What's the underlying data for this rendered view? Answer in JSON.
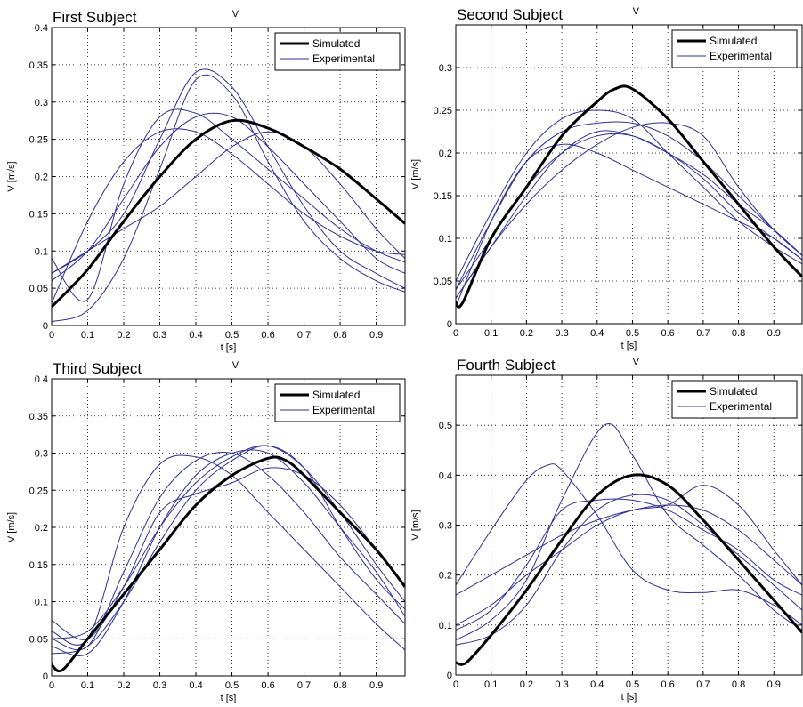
{
  "chart_data": [
    {
      "type": "line",
      "title": "First Subject",
      "caret": "V",
      "xlabel": "t [s]",
      "ylabel": "V [m/s]",
      "xlim": [
        0,
        0.98
      ],
      "ylim": [
        0,
        0.4
      ],
      "xticks": [
        "0",
        "0.1",
        "0.2",
        "0.3",
        "0.4",
        "0.5",
        "0.6",
        "0.7",
        "0.8",
        "0.9"
      ],
      "yticks": [
        "0",
        "0.05",
        "0.1",
        "0.15",
        "0.2",
        "0.25",
        "0.3",
        "0.35",
        "0.4"
      ],
      "grid": true,
      "legend": {
        "position": "top-right",
        "entries": [
          "Simulated",
          "Experimental"
        ]
      },
      "series": [
        {
          "name": "Simulated",
          "color": "#000000",
          "x": [
            0,
            0.1,
            0.2,
            0.3,
            0.4,
            0.5,
            0.6,
            0.7,
            0.8,
            0.9,
            0.98
          ],
          "y": [
            0.025,
            0.075,
            0.14,
            0.2,
            0.25,
            0.275,
            0.265,
            0.24,
            0.21,
            0.17,
            0.137
          ]
        },
        {
          "name": "Experimental",
          "color": "#2e3192",
          "x": [
            0,
            0.1,
            0.2,
            0.3,
            0.4,
            0.5,
            0.6,
            0.7,
            0.8,
            0.9,
            0.98
          ],
          "y": [
            0.005,
            0.02,
            0.09,
            0.21,
            0.33,
            0.31,
            0.22,
            0.14,
            0.09,
            0.06,
            0.045
          ]
        },
        {
          "name": "Experimental",
          "color": "#2e3192",
          "x": [
            0,
            0.1,
            0.2,
            0.3,
            0.4,
            0.5,
            0.6,
            0.7,
            0.8,
            0.9,
            0.98
          ],
          "y": [
            0.07,
            0.1,
            0.15,
            0.25,
            0.34,
            0.32,
            0.24,
            0.16,
            0.1,
            0.07,
            0.05
          ]
        },
        {
          "name": "Experimental",
          "color": "#2e3192",
          "x": [
            0,
            0.1,
            0.2,
            0.3,
            0.4,
            0.5,
            0.6,
            0.7,
            0.8,
            0.9,
            0.98
          ],
          "y": [
            0.09,
            0.035,
            0.19,
            0.28,
            0.285,
            0.25,
            0.21,
            0.17,
            0.13,
            0.1,
            0.085
          ]
        },
        {
          "name": "Experimental",
          "color": "#2e3192",
          "x": [
            0,
            0.1,
            0.2,
            0.3,
            0.4,
            0.5,
            0.6,
            0.7,
            0.8,
            0.9,
            0.98
          ],
          "y": [
            0.03,
            0.14,
            0.22,
            0.26,
            0.26,
            0.23,
            0.19,
            0.15,
            0.12,
            0.1,
            0.095
          ]
        },
        {
          "name": "Experimental",
          "color": "#2e3192",
          "x": [
            0,
            0.1,
            0.2,
            0.3,
            0.4,
            0.5,
            0.6,
            0.7,
            0.8,
            0.9,
            0.98
          ],
          "y": [
            0.06,
            0.1,
            0.17,
            0.24,
            0.28,
            0.28,
            0.24,
            0.19,
            0.14,
            0.09,
            0.07
          ]
        },
        {
          "name": "Experimental",
          "color": "#2e3192",
          "x": [
            0,
            0.1,
            0.2,
            0.3,
            0.4,
            0.5,
            0.6,
            0.7,
            0.8,
            0.9,
            0.98
          ],
          "y": [
            0.07,
            0.1,
            0.13,
            0.16,
            0.2,
            0.24,
            0.26,
            0.24,
            0.19,
            0.13,
            0.09
          ]
        }
      ]
    },
    {
      "type": "line",
      "title": "Second Subject",
      "caret": "V",
      "xlabel": "t [s]",
      "ylabel": "V [m/s]",
      "xlim": [
        0,
        0.98
      ],
      "ylim": [
        0,
        0.35
      ],
      "xticks": [
        "0",
        "0.1",
        "0.2",
        "0.3",
        "0.4",
        "0.5",
        "0.6",
        "0.7",
        "0.8",
        "0.9"
      ],
      "yticks": [
        "0",
        "0.05",
        "0.1",
        "0.15",
        "0.2",
        "0.25",
        "0.3"
      ],
      "grid": true,
      "legend": {
        "position": "top-right",
        "entries": [
          "Simulated",
          "Experimental"
        ]
      },
      "series": [
        {
          "name": "Simulated",
          "color": "#000000",
          "x": [
            0,
            0.02,
            0.1,
            0.2,
            0.3,
            0.4,
            0.45,
            0.5,
            0.6,
            0.7,
            0.8,
            0.9,
            0.98
          ],
          "y": [
            0.025,
            0.025,
            0.1,
            0.16,
            0.22,
            0.26,
            0.275,
            0.275,
            0.24,
            0.19,
            0.14,
            0.09,
            0.055
          ]
        },
        {
          "name": "Experimental",
          "color": "#2e3192",
          "x": [
            0,
            0.1,
            0.2,
            0.3,
            0.4,
            0.5,
            0.6,
            0.7,
            0.8,
            0.9,
            0.98
          ],
          "y": [
            0.02,
            0.12,
            0.19,
            0.21,
            0.2,
            0.18,
            0.16,
            0.14,
            0.12,
            0.1,
            0.075
          ]
        },
        {
          "name": "Experimental",
          "color": "#2e3192",
          "x": [
            0,
            0.1,
            0.2,
            0.3,
            0.4,
            0.5,
            0.6,
            0.7,
            0.8,
            0.9,
            0.98
          ],
          "y": [
            0.05,
            0.13,
            0.2,
            0.24,
            0.25,
            0.24,
            0.2,
            0.16,
            0.12,
            0.09,
            0.07
          ]
        },
        {
          "name": "Experimental",
          "color": "#2e3192",
          "x": [
            0,
            0.1,
            0.2,
            0.3,
            0.4,
            0.5,
            0.6,
            0.7,
            0.8,
            0.9,
            0.98
          ],
          "y": [
            0.04,
            0.1,
            0.16,
            0.2,
            0.22,
            0.22,
            0.2,
            0.17,
            0.13,
            0.1,
            0.075
          ]
        },
        {
          "name": "Experimental",
          "color": "#2e3192",
          "x": [
            0,
            0.1,
            0.2,
            0.3,
            0.4,
            0.5,
            0.6,
            0.7,
            0.8,
            0.9,
            0.98
          ],
          "y": [
            0.03,
            0.09,
            0.15,
            0.2,
            0.225,
            0.22,
            0.2,
            0.175,
            0.14,
            0.11,
            0.08
          ]
        },
        {
          "name": "Experimental",
          "color": "#2e3192",
          "x": [
            0,
            0.1,
            0.2,
            0.3,
            0.4,
            0.5,
            0.6,
            0.7,
            0.8,
            0.9,
            0.98
          ],
          "y": [
            0.03,
            0.09,
            0.14,
            0.18,
            0.21,
            0.23,
            0.235,
            0.22,
            0.16,
            0.11,
            0.08
          ]
        },
        {
          "name": "Experimental",
          "color": "#2e3192",
          "x": [
            0,
            0.1,
            0.2,
            0.3,
            0.4,
            0.5,
            0.6,
            0.7,
            0.8,
            0.9,
            0.98
          ],
          "y": [
            0.04,
            0.12,
            0.19,
            0.225,
            0.235,
            0.235,
            0.22,
            0.19,
            0.15,
            0.11,
            0.08
          ]
        }
      ]
    },
    {
      "type": "line",
      "title": "Third Subject",
      "caret": "V",
      "xlabel": "t [s]",
      "ylabel": "V [m/s]",
      "xlim": [
        0,
        0.98
      ],
      "ylim": [
        0,
        0.4
      ],
      "xticks": [
        "0",
        "0.1",
        "0.2",
        "0.3",
        "0.4",
        "0.5",
        "0.6",
        "0.7",
        "0.8",
        "0.9"
      ],
      "yticks": [
        "0",
        "0.05",
        "0.1",
        "0.15",
        "0.2",
        "0.25",
        "0.3",
        "0.35",
        "0.4"
      ],
      "grid": true,
      "legend": {
        "position": "top-right",
        "entries": [
          "Simulated",
          "Experimental"
        ]
      },
      "series": [
        {
          "name": "Simulated",
          "color": "#000000",
          "x": [
            0,
            0.03,
            0.1,
            0.2,
            0.3,
            0.4,
            0.5,
            0.6,
            0.65,
            0.7,
            0.8,
            0.9,
            0.98
          ],
          "y": [
            0.015,
            0.008,
            0.05,
            0.11,
            0.17,
            0.23,
            0.27,
            0.293,
            0.29,
            0.27,
            0.22,
            0.17,
            0.12
          ]
        },
        {
          "name": "Experimental",
          "color": "#2e3192",
          "x": [
            0,
            0.1,
            0.2,
            0.3,
            0.4,
            0.5,
            0.6,
            0.7,
            0.8,
            0.9,
            0.98
          ],
          "y": [
            0.06,
            0.05,
            0.2,
            0.285,
            0.295,
            0.27,
            0.22,
            0.17,
            0.12,
            0.07,
            0.035
          ]
        },
        {
          "name": "Experimental",
          "color": "#2e3192",
          "x": [
            0,
            0.1,
            0.2,
            0.3,
            0.4,
            0.5,
            0.6,
            0.7,
            0.8,
            0.9,
            0.98
          ],
          "y": [
            0.05,
            0.04,
            0.14,
            0.24,
            0.29,
            0.3,
            0.27,
            0.22,
            0.16,
            0.11,
            0.07
          ]
        },
        {
          "name": "Experimental",
          "color": "#2e3192",
          "x": [
            0,
            0.1,
            0.2,
            0.3,
            0.4,
            0.5,
            0.6,
            0.7,
            0.8,
            0.9,
            0.98
          ],
          "y": [
            0.04,
            0.03,
            0.1,
            0.2,
            0.27,
            0.3,
            0.3,
            0.26,
            0.2,
            0.14,
            0.08
          ]
        },
        {
          "name": "Experimental",
          "color": "#2e3192",
          "x": [
            0,
            0.1,
            0.2,
            0.3,
            0.4,
            0.5,
            0.6,
            0.7,
            0.8,
            0.9,
            0.98
          ],
          "y": [
            0.05,
            0.06,
            0.12,
            0.2,
            0.26,
            0.295,
            0.31,
            0.28,
            0.22,
            0.15,
            0.1
          ]
        },
        {
          "name": "Experimental",
          "color": "#2e3192",
          "x": [
            0,
            0.1,
            0.2,
            0.3,
            0.4,
            0.5,
            0.6,
            0.7,
            0.8,
            0.9,
            0.98
          ],
          "y": [
            0.075,
            0.05,
            0.12,
            0.22,
            0.245,
            0.26,
            0.28,
            0.27,
            0.23,
            0.17,
            0.12
          ]
        },
        {
          "name": "Experimental",
          "color": "#2e3192",
          "x": [
            0,
            0.1,
            0.2,
            0.3,
            0.4,
            0.5,
            0.6,
            0.7,
            0.8,
            0.9,
            0.98
          ],
          "y": [
            0.03,
            0.04,
            0.1,
            0.18,
            0.25,
            0.29,
            0.31,
            0.28,
            0.2,
            0.13,
            0.09
          ]
        }
      ]
    },
    {
      "type": "line",
      "title": "Fourth Subject",
      "caret": "V",
      "xlabel": "t [s]",
      "ylabel": "V [m/s]",
      "xlim": [
        0,
        0.98
      ],
      "ylim": [
        0,
        0.6
      ],
      "xticks": [
        "0",
        "0.1",
        "0.2",
        "0.3",
        "0.4",
        "0.5",
        "0.6",
        "0.7",
        "0.8",
        "0.9"
      ],
      "yticks": [
        "0",
        "0.1",
        "0.2",
        "0.3",
        "0.4",
        "0.5"
      ],
      "grid": true,
      "legend": {
        "position": "top-right",
        "entries": [
          "Simulated",
          "Experimental"
        ]
      },
      "series": [
        {
          "name": "Simulated",
          "color": "#000000",
          "x": [
            0,
            0.03,
            0.1,
            0.2,
            0.3,
            0.4,
            0.5,
            0.6,
            0.7,
            0.8,
            0.9,
            0.98
          ],
          "y": [
            0.025,
            0.025,
            0.08,
            0.17,
            0.27,
            0.36,
            0.4,
            0.38,
            0.31,
            0.23,
            0.15,
            0.085
          ]
        },
        {
          "name": "Experimental",
          "color": "#2e3192",
          "x": [
            0,
            0.1,
            0.2,
            0.26,
            0.3,
            0.4,
            0.5,
            0.6,
            0.7,
            0.8,
            0.9,
            0.98
          ],
          "y": [
            0.18,
            0.29,
            0.39,
            0.42,
            0.41,
            0.32,
            0.21,
            0.17,
            0.165,
            0.17,
            0.14,
            0.1
          ]
        },
        {
          "name": "Experimental",
          "color": "#2e3192",
          "x": [
            0,
            0.1,
            0.2,
            0.3,
            0.42,
            0.5,
            0.6,
            0.7,
            0.8,
            0.9,
            0.98
          ],
          "y": [
            0.07,
            0.11,
            0.19,
            0.35,
            0.5,
            0.44,
            0.32,
            0.26,
            0.2,
            0.13,
            0.09
          ]
        },
        {
          "name": "Experimental",
          "color": "#2e3192",
          "x": [
            0,
            0.1,
            0.2,
            0.3,
            0.4,
            0.5,
            0.6,
            0.7,
            0.8,
            0.9,
            0.98
          ],
          "y": [
            0.16,
            0.2,
            0.24,
            0.28,
            0.31,
            0.33,
            0.34,
            0.33,
            0.29,
            0.23,
            0.18
          ]
        },
        {
          "name": "Experimental",
          "color": "#2e3192",
          "x": [
            0,
            0.1,
            0.2,
            0.3,
            0.4,
            0.5,
            0.6,
            0.7,
            0.8,
            0.9,
            0.98
          ],
          "y": [
            0.1,
            0.14,
            0.2,
            0.25,
            0.3,
            0.33,
            0.34,
            0.38,
            0.34,
            0.25,
            0.18
          ]
        },
        {
          "name": "Experimental",
          "color": "#2e3192",
          "x": [
            0,
            0.1,
            0.2,
            0.3,
            0.4,
            0.5,
            0.6,
            0.7,
            0.8,
            0.9,
            0.98
          ],
          "y": [
            0.09,
            0.13,
            0.22,
            0.33,
            0.35,
            0.35,
            0.33,
            0.29,
            0.25,
            0.19,
            0.16
          ]
        },
        {
          "name": "Experimental",
          "color": "#2e3192",
          "x": [
            0,
            0.1,
            0.2,
            0.3,
            0.4,
            0.5,
            0.6,
            0.7,
            0.8,
            0.9,
            0.98
          ],
          "y": [
            0.06,
            0.08,
            0.14,
            0.25,
            0.33,
            0.36,
            0.35,
            0.3,
            0.24,
            0.18,
            0.13
          ]
        }
      ]
    }
  ]
}
